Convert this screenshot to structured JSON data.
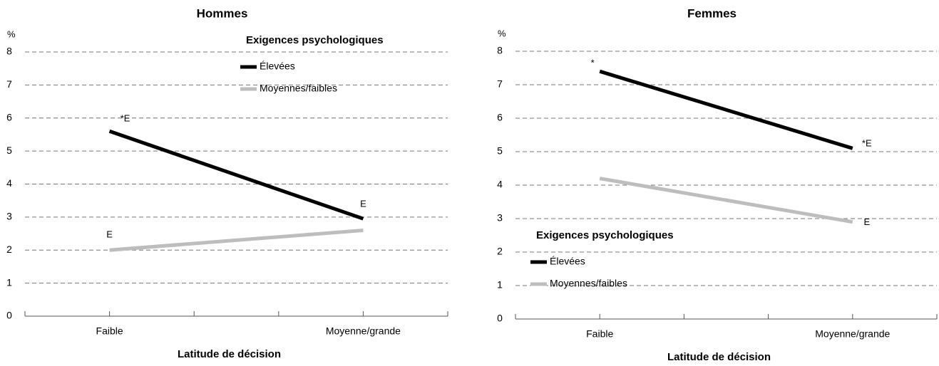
{
  "chart_data": [
    {
      "type": "line",
      "title": "Hommes",
      "ylabel": "%",
      "xlabel": "Latitude de décision",
      "categories": [
        "Faible",
        "Moyenne/grande"
      ],
      "series": [
        {
          "name": "Élevées",
          "color": "#000000",
          "values": [
            5.6,
            2.95
          ],
          "notes": [
            "*E",
            "E"
          ]
        },
        {
          "name": "Moyennes/faibles",
          "color": "#bdbdbd",
          "values": [
            2.0,
            2.6
          ],
          "notes": [
            "E",
            null
          ]
        }
      ],
      "legend_title": "Exigences psychologiques",
      "legend": "upper right",
      "ylim": [
        0,
        8
      ],
      "yticks": [
        0,
        1,
        2,
        3,
        4,
        5,
        6,
        7,
        8
      ],
      "grid": true
    },
    {
      "type": "line",
      "title": "Femmes",
      "ylabel": "%",
      "xlabel": "Latitude de décision",
      "categories": [
        "Faible",
        "Moyenne/grande"
      ],
      "series": [
        {
          "name": "Élevées",
          "color": "#000000",
          "values": [
            7.4,
            5.1
          ],
          "notes": [
            "*",
            "*E"
          ]
        },
        {
          "name": "Moyennes/faibles",
          "color": "#bdbdbd",
          "values": [
            4.2,
            2.9
          ],
          "notes": [
            null,
            "E"
          ]
        }
      ],
      "legend_title": "Exigences psychologiques",
      "legend": "lower left",
      "ylim": [
        0,
        8
      ],
      "yticks": [
        0,
        1,
        2,
        3,
        4,
        5,
        6,
        7,
        8
      ],
      "grid": true
    }
  ]
}
